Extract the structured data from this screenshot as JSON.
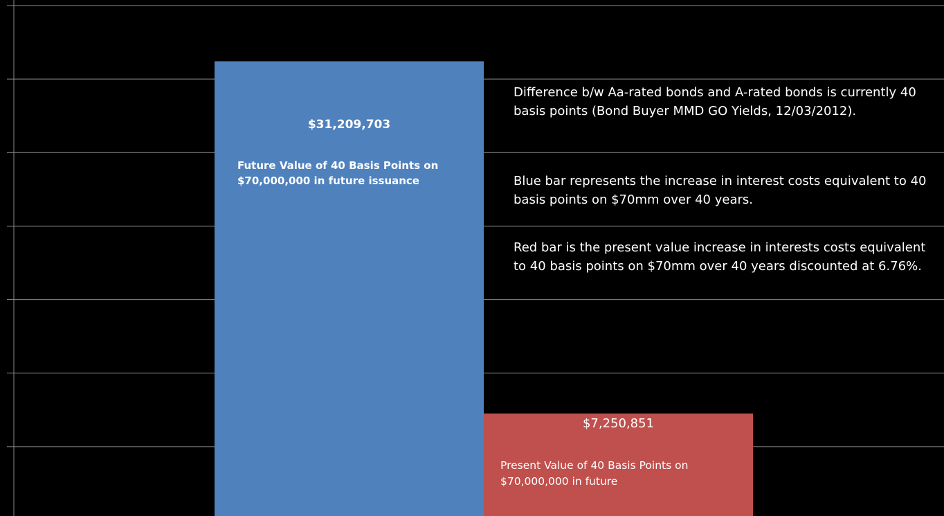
{
  "chart_data": {
    "type": "bar",
    "categories": [
      "Future Value of 40 Basis Points on $70,000,000 in future issuance",
      "Present Value of 40 Basis Points on $70,000,000 in future"
    ],
    "values": [
      31209703,
      7250851
    ],
    "value_labels": [
      "$31,209,703",
      "$7,250,851"
    ],
    "colors": [
      "#4f81bd",
      "#c0504d"
    ],
    "ylim": [
      0,
      35000000
    ],
    "yticks": [
      0,
      5000000,
      10000000,
      15000000,
      20000000,
      25000000,
      30000000,
      35000000
    ],
    "grid": true,
    "annotations": [
      "Difference b/w Aa-rated bonds and A-rated bonds is currently 40 basis points (Bond Buyer MMD GO Yields, 12/03/2012).",
      "Blue bar represents the increase in interest costs equivalent to 40 basis points on $70mm over 40 years.",
      "Red bar is the present value increase in interests costs equivalent to 40 basis points on $70mm over 40 years discounted at 6.76%."
    ]
  }
}
